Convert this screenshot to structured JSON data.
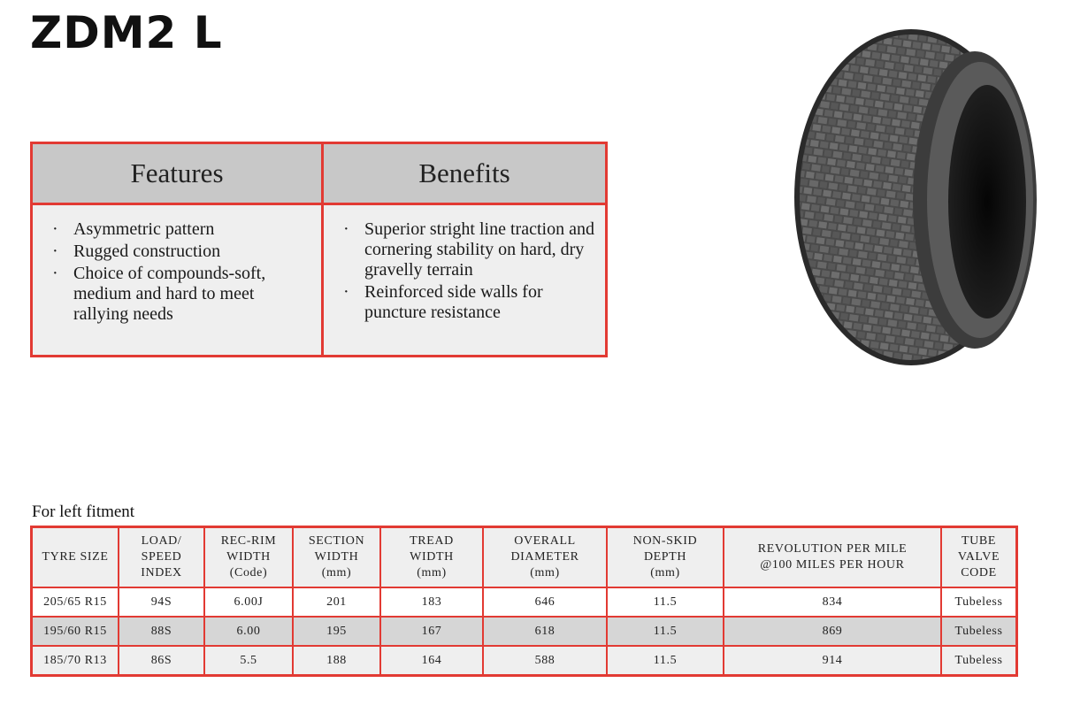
{
  "title": "ZDM2   L",
  "features": {
    "header": "Features",
    "items": [
      "Asymmetric pattern",
      "Rugged construction",
      "Choice of compounds-soft, medium and hard to meet rallying needs"
    ]
  },
  "benefits": {
    "header": "Benefits",
    "items": [
      "Superior stright line traction and cornering stability on hard, dry gravelly terrain",
      "Reinforced side walls for puncture resistance"
    ]
  },
  "fitment_label": "For left fitment",
  "spec_table": {
    "headers": [
      [
        "TYRE SIZE"
      ],
      [
        "LOAD/",
        "SPEED",
        "INDEX"
      ],
      [
        "REC-RIM",
        "WIDTH",
        "(Code)"
      ],
      [
        "SECTION",
        "WIDTH",
        "(mm)"
      ],
      [
        "TREAD",
        "WIDTH",
        "(mm)"
      ],
      [
        "OVERALL",
        "DIAMETER",
        "(mm)"
      ],
      [
        "NON-SKID",
        "DEPTH",
        "(mm)"
      ],
      [
        "REVOLUTION PER MILE",
        "@100 MILES PER HOUR"
      ],
      [
        "TUBE VALVE",
        "CODE"
      ]
    ],
    "rows": [
      [
        "205/65 R15",
        "94S",
        "6.00J",
        "201",
        "183",
        "646",
        "11.5",
        "834",
        "Tubeless"
      ],
      [
        "195/60 R15",
        "88S",
        "6.00",
        "195",
        "167",
        "618",
        "11.5",
        "869",
        "Tubeless"
      ],
      [
        "185/70 R13",
        "86S",
        "5.5",
        "188",
        "164",
        "588",
        "11.5",
        "914",
        "Tubeless"
      ]
    ]
  }
}
